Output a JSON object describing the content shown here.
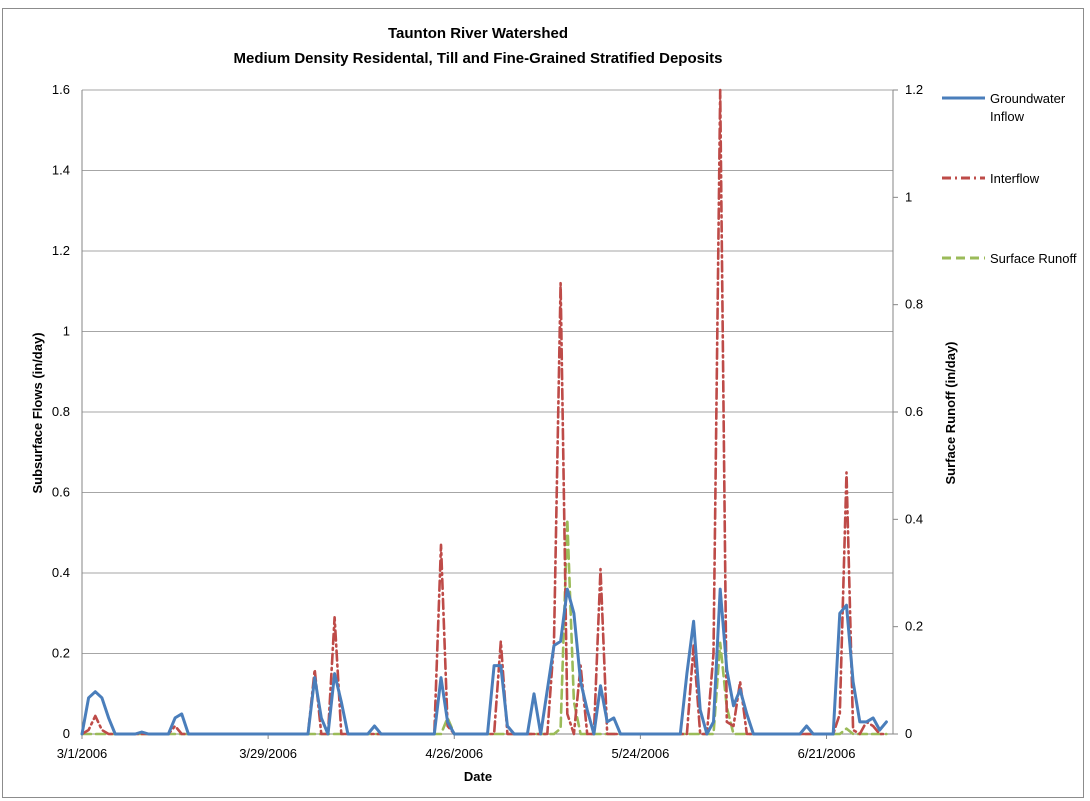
{
  "chart_data": {
    "type": "line",
    "title": "Taunton River Watershed",
    "subtitle": "Medium Density Residental, Till and Fine-Grained Stratified Deposits",
    "xlabel": "Date",
    "ylabel": "Subsurface Flows (in/day)",
    "y2label": "Surface Runoff (in/day)",
    "x_ticks": [
      "3/1/2006",
      "3/29/2006",
      "4/26/2006",
      "5/24/2006",
      "6/21/2006"
    ],
    "x_start": "3/1/2006",
    "x_end": "7/1/2006",
    "ylim": [
      0,
      1.6
    ],
    "y_ticks": [
      "0",
      "0.2",
      "0.4",
      "0.6",
      "0.8",
      "1",
      "1.2",
      "1.4",
      "1.6"
    ],
    "y2lim": [
      0,
      1.2
    ],
    "y2_ticks": [
      "0",
      "0.2",
      "0.4",
      "0.6",
      "0.8",
      "1",
      "1.2"
    ],
    "grid": "horizontal",
    "legend_position": "right",
    "series": [
      {
        "name": "Groundwater Inflow",
        "axis": "left",
        "color": "#4a7ebb",
        "style": "solid",
        "points": [
          [
            "3/1/2006",
            0
          ],
          [
            "3/2/2006",
            0.09
          ],
          [
            "3/3/2006",
            0.105
          ],
          [
            "3/4/2006",
            0.09
          ],
          [
            "3/5/2006",
            0.04
          ],
          [
            "3/6/2006",
            0
          ],
          [
            "3/9/2006",
            0
          ],
          [
            "3/10/2006",
            0.005
          ],
          [
            "3/11/2006",
            0
          ],
          [
            "3/14/2006",
            0
          ],
          [
            "3/15/2006",
            0.04
          ],
          [
            "3/16/2006",
            0.05
          ],
          [
            "3/17/2006",
            0
          ],
          [
            "4/4/2006",
            0
          ],
          [
            "4/5/2006",
            0.14
          ],
          [
            "4/6/2006",
            0.04
          ],
          [
            "4/7/2006",
            0
          ],
          [
            "4/8/2006",
            0.15
          ],
          [
            "4/9/2006",
            0.08
          ],
          [
            "4/10/2006",
            0
          ],
          [
            "4/13/2006",
            0
          ],
          [
            "4/14/2006",
            0.02
          ],
          [
            "4/15/2006",
            0
          ],
          [
            "4/23/2006",
            0
          ],
          [
            "4/24/2006",
            0.14
          ],
          [
            "4/25/2006",
            0.03
          ],
          [
            "4/26/2006",
            0
          ],
          [
            "5/1/2006",
            0
          ],
          [
            "5/2/2006",
            0.17
          ],
          [
            "5/3/2006",
            0.17
          ],
          [
            "5/4/2006",
            0.02
          ],
          [
            "5/5/2006",
            0
          ],
          [
            "5/7/2006",
            0
          ],
          [
            "5/8/2006",
            0.1
          ],
          [
            "5/9/2006",
            0
          ],
          [
            "5/11/2006",
            0.22
          ],
          [
            "5/12/2006",
            0.23
          ],
          [
            "5/13/2006",
            0.36
          ],
          [
            "5/14/2006",
            0.3
          ],
          [
            "5/15/2006",
            0.13
          ],
          [
            "5/16/2006",
            0.06
          ],
          [
            "5/17/2006",
            0
          ],
          [
            "5/18/2006",
            0.12
          ],
          [
            "5/19/2006",
            0.03
          ],
          [
            "5/20/2006",
            0.04
          ],
          [
            "5/21/2006",
            0
          ],
          [
            "5/30/2006",
            0
          ],
          [
            "5/31/2006",
            0.15
          ],
          [
            "6/1/2006",
            0.28
          ],
          [
            "6/2/2006",
            0.06
          ],
          [
            "6/3/2006",
            0
          ],
          [
            "6/4/2006",
            0.03
          ],
          [
            "6/5/2006",
            0.36
          ],
          [
            "6/6/2006",
            0.16
          ],
          [
            "6/7/2006",
            0.07
          ],
          [
            "6/8/2006",
            0.11
          ],
          [
            "6/9/2006",
            0.05
          ],
          [
            "6/10/2006",
            0
          ],
          [
            "6/17/2006",
            0
          ],
          [
            "6/18/2006",
            0.02
          ],
          [
            "6/19/2006",
            0
          ],
          [
            "6/22/2006",
            0
          ],
          [
            "6/23/2006",
            0.3
          ],
          [
            "6/24/2006",
            0.32
          ],
          [
            "6/25/2006",
            0.13
          ],
          [
            "6/26/2006",
            0.03
          ],
          [
            "6/27/2006",
            0.03
          ],
          [
            "6/28/2006",
            0.04
          ],
          [
            "6/29/2006",
            0.01
          ],
          [
            "6/30/2006",
            0.03
          ]
        ]
      },
      {
        "name": "Interflow",
        "axis": "left",
        "color": "#be4b48",
        "style": "dash-dot",
        "points": [
          [
            "3/1/2006",
            0
          ],
          [
            "3/2/2006",
            0.01
          ],
          [
            "3/3/2006",
            0.045
          ],
          [
            "3/4/2006",
            0.01
          ],
          [
            "3/5/2006",
            0
          ],
          [
            "3/14/2006",
            0
          ],
          [
            "3/15/2006",
            0.02
          ],
          [
            "3/16/2006",
            0
          ],
          [
            "4/4/2006",
            0
          ],
          [
            "4/5/2006",
            0.16
          ],
          [
            "4/6/2006",
            0
          ],
          [
            "4/7/2006",
            0
          ],
          [
            "4/8/2006",
            0.29
          ],
          [
            "4/9/2006",
            0
          ],
          [
            "4/10/2006",
            0
          ],
          [
            "4/23/2006",
            0
          ],
          [
            "4/24/2006",
            0.47
          ],
          [
            "4/25/2006",
            0.02
          ],
          [
            "4/26/2006",
            0
          ],
          [
            "5/2/2006",
            0
          ],
          [
            "5/3/2006",
            0.23
          ],
          [
            "5/4/2006",
            0
          ],
          [
            "5/10/2006",
            0
          ],
          [
            "5/11/2006",
            0.23
          ],
          [
            "5/12/2006",
            1.12
          ],
          [
            "5/13/2006",
            0.05
          ],
          [
            "5/14/2006",
            0
          ],
          [
            "5/15/2006",
            0.17
          ],
          [
            "5/16/2006",
            0
          ],
          [
            "5/17/2006",
            0
          ],
          [
            "5/18/2006",
            0.41
          ],
          [
            "5/19/2006",
            0
          ],
          [
            "5/20/2006",
            0
          ],
          [
            "5/31/2006",
            0
          ],
          [
            "6/1/2006",
            0.22
          ],
          [
            "6/2/2006",
            0
          ],
          [
            "6/3/2006",
            0
          ],
          [
            "6/4/2006",
            0.2
          ],
          [
            "6/5/2006",
            1.6
          ],
          [
            "6/6/2006",
            0.03
          ],
          [
            "6/7/2006",
            0.02
          ],
          [
            "6/8/2006",
            0.13
          ],
          [
            "6/9/2006",
            0
          ],
          [
            "6/22/2006",
            0
          ],
          [
            "6/23/2006",
            0.05
          ],
          [
            "6/24/2006",
            0.65
          ],
          [
            "6/25/2006",
            0.01
          ],
          [
            "6/26/2006",
            0
          ],
          [
            "6/27/2006",
            0.03
          ],
          [
            "6/28/2006",
            0.02
          ],
          [
            "6/29/2006",
            0
          ],
          [
            "6/30/2006",
            0
          ]
        ]
      },
      {
        "name": "Surface Runoff",
        "axis": "right",
        "color": "#9bbb59",
        "style": "dashed",
        "points": [
          [
            "3/1/2006",
            0
          ],
          [
            "4/24/2006",
            0
          ],
          [
            "4/25/2006",
            0.03
          ],
          [
            "4/26/2006",
            0
          ],
          [
            "5/10/2006",
            0
          ],
          [
            "5/11/2006",
            0
          ],
          [
            "5/12/2006",
            0.01
          ],
          [
            "5/13/2006",
            0.4
          ],
          [
            "5/14/2006",
            0.06
          ],
          [
            "5/15/2006",
            0
          ],
          [
            "6/4/2006",
            0
          ],
          [
            "6/5/2006",
            0.17
          ],
          [
            "6/6/2006",
            0.05
          ],
          [
            "6/7/2006",
            0
          ],
          [
            "6/23/2006",
            0
          ],
          [
            "6/24/2006",
            0.01
          ],
          [
            "6/25/2006",
            0
          ],
          [
            "6/30/2006",
            0
          ]
        ]
      }
    ]
  }
}
